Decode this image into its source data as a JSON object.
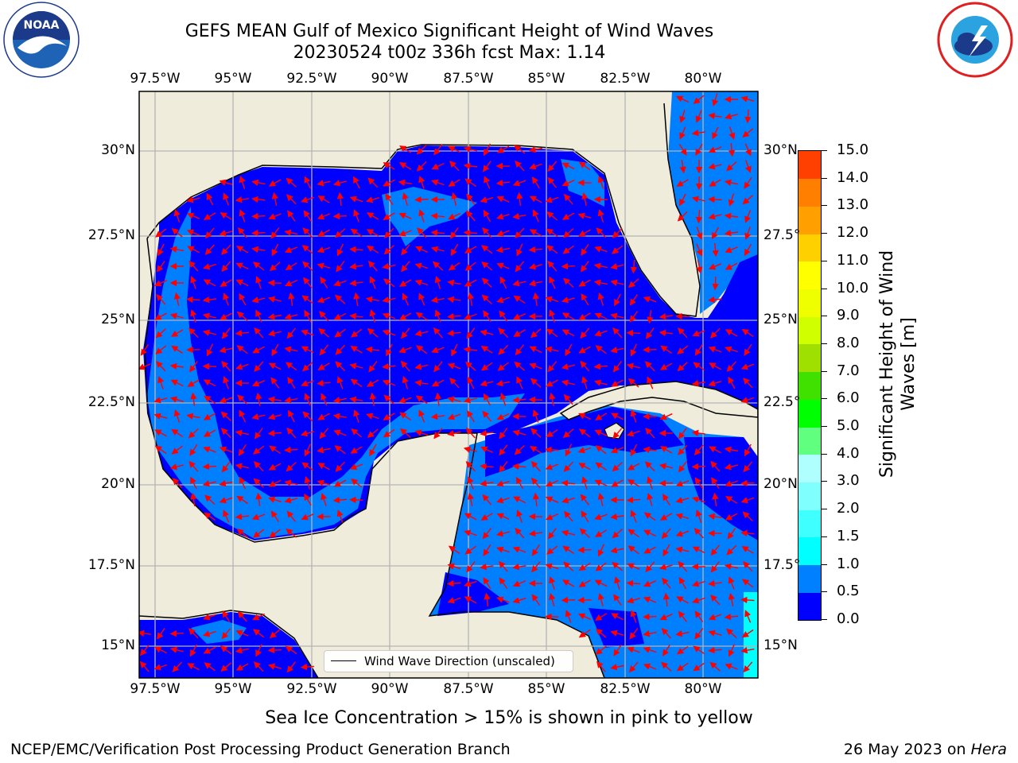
{
  "title": {
    "line1": "GEFS MEAN Gulf of Mexico Significant Height of Wind Waves",
    "line2": "20230524 t00z 336h fcst   Max: 1.14"
  },
  "map": {
    "lon_ticks": [
      "97.5°W",
      "95°W",
      "92.5°W",
      "90°W",
      "87.5°W",
      "85°W",
      "82.5°W",
      "80°W"
    ],
    "lat_ticks": [
      "30°N",
      "27.5°N",
      "25°N",
      "22.5°N",
      "20°N",
      "17.5°N",
      "15°N"
    ],
    "lat_ticks_right": [
      "30°N",
      "27.5°",
      "25°N",
      "22.5°",
      "20°N",
      "17.5°",
      "15°N"
    ],
    "lon_range": [
      -98,
      -78.2
    ],
    "lat_range": [
      14,
      31.6
    ],
    "grid": true,
    "colors": {
      "land": "#efecdc",
      "grid": "#b4b4b4",
      "arrow": "#ff0000",
      "coast": "#000000"
    },
    "legend_label": "Wind Wave Direction (unscaled)"
  },
  "colorbar": {
    "label_line1": "Significant Height of Wind",
    "label_line2": "Waves [m]",
    "ticks": [
      "0.0",
      "0.5",
      "1.0",
      "1.5",
      "2.0",
      "3.0",
      "4.0",
      "5.0",
      "6.0",
      "7.0",
      "8.0",
      "9.0",
      "10.0",
      "11.0",
      "12.0",
      "13.0",
      "14.0",
      "15.0"
    ],
    "colors": [
      "#0000ff",
      "#0080ff",
      "#00ffff",
      "#40ffff",
      "#80ffff",
      "#b0ffff",
      "#60ff80",
      "#00ff00",
      "#40e000",
      "#a0e000",
      "#d0ff00",
      "#f0ff00",
      "#ffff00",
      "#ffd000",
      "#ffa000",
      "#ff8000",
      "#ff4000",
      "#ff0000"
    ]
  },
  "chart_data": {
    "type": "heatmap",
    "variable": "Significant Height of Wind Waves",
    "units": "m",
    "max": 1.14,
    "range": [
      0.0,
      15.0
    ],
    "x_range": [
      "97.5°W",
      "80°W"
    ],
    "y_range": [
      "15°N",
      "30°N"
    ]
  },
  "notes": {
    "sea_ice": "Sea Ice Concentration > 15% is shown in pink to yellow",
    "credit": "NCEP/EMC/Verification Post Processing Product Generation Branch",
    "date_prefix": "26 May 2023 on ",
    "date_host": "Hera"
  },
  "logos": {
    "noaa": "NOAA",
    "nws": "NATIONAL WEATHER SERVICE"
  }
}
